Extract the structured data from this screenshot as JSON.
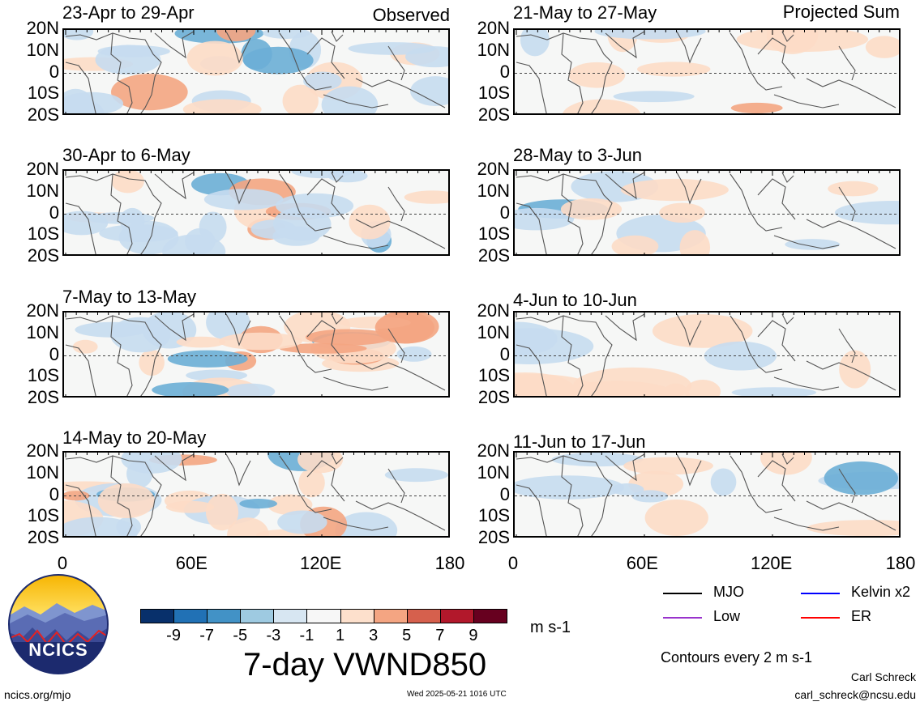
{
  "chart_data": {
    "type": "heatmap",
    "title": "7-day VWND850",
    "unit": "m s-1",
    "observed_label": "Observed",
    "projected_label": "Projected Sum",
    "x_ticks": [
      "0",
      "60E",
      "120E",
      "180"
    ],
    "y_ticks": [
      "20N",
      "10N",
      "0",
      "10S",
      "20S"
    ],
    "xlim": [
      0,
      180
    ],
    "ylim": [
      -20,
      20
    ],
    "colorbar_ticks": [
      "-9",
      "-7",
      "-5",
      "-3",
      "-1",
      "1",
      "3",
      "5",
      "7",
      "9"
    ],
    "colorbar_colors": [
      "#08306b",
      "#2171b5",
      "#4292c6",
      "#9ecae1",
      "#d7e6f2",
      "#f7f7f7",
      "#fde0cc",
      "#f4a582",
      "#d6604d",
      "#b2182b",
      "#67001f"
    ],
    "panels": [
      {
        "column": "observed",
        "period": "23-Apr to 29-Apr"
      },
      {
        "column": "observed",
        "period": "30-Apr to 6-May"
      },
      {
        "column": "observed",
        "period": "7-May to 13-May"
      },
      {
        "column": "observed",
        "period": "14-May to 20-May"
      },
      {
        "column": "projected",
        "period": "21-May to 27-May"
      },
      {
        "column": "projected",
        "period": "28-May to 3-Jun"
      },
      {
        "column": "projected",
        "period": "4-Jun to 10-Jun"
      },
      {
        "column": "projected",
        "period": "11-Jun to 17-Jun"
      }
    ],
    "legend": [
      {
        "label": "MJO",
        "color": "#000000"
      },
      {
        "label": "Kelvin x2",
        "color": "#0000ff"
      },
      {
        "label": "Low",
        "color": "#9933cc"
      },
      {
        "label": "ER",
        "color": "#ff0000"
      }
    ],
    "contour_note": "Contours every 2 m s-1"
  },
  "logo": {
    "text": "NCICS"
  },
  "footer": {
    "url": "ncics.org/mjo",
    "timestamp": "Wed 2025-05-21 1016 UTC",
    "author": "Carl Schreck",
    "email": "carl_schreck@ncsu.edu"
  }
}
